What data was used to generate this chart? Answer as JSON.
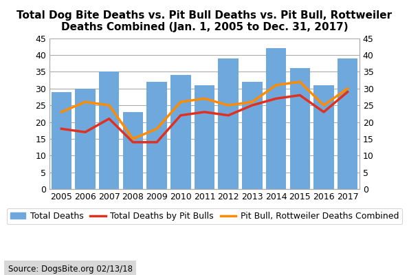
{
  "years": [
    2005,
    2006,
    2007,
    2008,
    2009,
    2010,
    2011,
    2012,
    2013,
    2014,
    2015,
    2016,
    2017
  ],
  "total_deaths": [
    29,
    30,
    35,
    23,
    32,
    34,
    31,
    39,
    32,
    42,
    36,
    31,
    39
  ],
  "pit_bull_deaths": [
    18,
    17,
    21,
    14,
    14,
    22,
    23,
    22,
    25,
    27,
    28,
    23,
    29
  ],
  "pit_rottweiler_combined": [
    23,
    26,
    25,
    15,
    18,
    26,
    27,
    25,
    26,
    31,
    32,
    25,
    30
  ],
  "bar_color": "#6fa8dc",
  "pit_bull_color": "#e03020",
  "combined_color": "#ff8c00",
  "title": "Total Dog Bite Deaths vs. Pit Bull Deaths vs. Pit Bull, Rottweiler\nDeaths Combined (Jan. 1, 2005 to Dec. 31, 2017)",
  "ylim": [
    0,
    45
  ],
  "yticks": [
    0,
    5,
    10,
    15,
    20,
    25,
    30,
    35,
    40,
    45
  ],
  "source_text": "Source: DogsBite.org 02/13/18",
  "legend_bar_label": "Total Deaths",
  "legend_red_label": "Total Deaths by Pit Bulls",
  "legend_orange_label": "Pit Bull, Rottweiler Deaths Combined",
  "title_fontsize": 11,
  "tick_fontsize": 9,
  "legend_fontsize": 9
}
